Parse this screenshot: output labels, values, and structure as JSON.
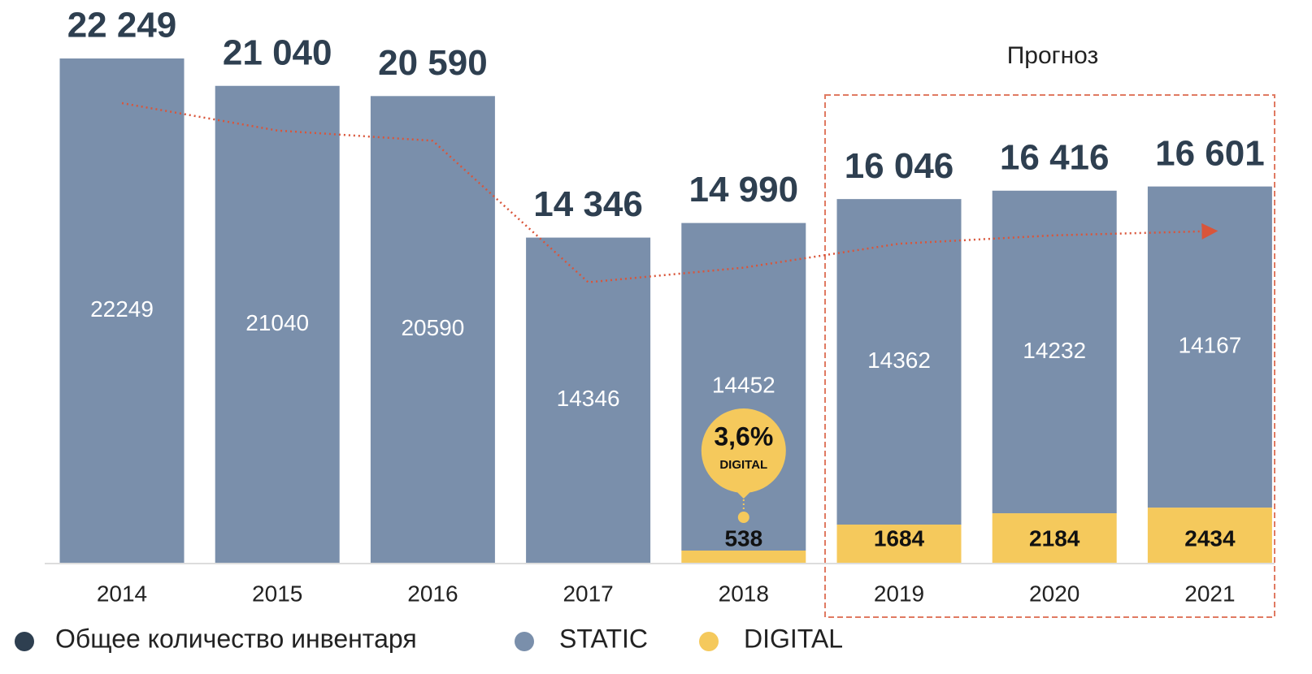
{
  "chart_data": {
    "type": "bar",
    "stacked": true,
    "categories": [
      "2014",
      "2015",
      "2016",
      "2017",
      "2018",
      "2019",
      "2020",
      "2021"
    ],
    "series": [
      {
        "name": "Общее количество инвентаря",
        "color": "#2e3f50",
        "line_color": "#d9553a",
        "values": [
          22249,
          21040,
          20590,
          14346,
          14990,
          16046,
          16416,
          16601
        ],
        "value_labels": [
          "22 249",
          "21 040",
          "20 590",
          "14 346",
          "14 990",
          "16 046",
          "16 416",
          "16 601"
        ]
      },
      {
        "name": "STATIC",
        "color": "#7a8fab",
        "values": [
          22249,
          21040,
          20590,
          14346,
          14452,
          14362,
          14232,
          14167
        ]
      },
      {
        "name": "DIGITAL",
        "color": "#f5c95c",
        "values": [
          null,
          null,
          null,
          null,
          538,
          1684,
          2184,
          2434
        ]
      }
    ],
    "annotations": {
      "forecast": "Прогноз",
      "share": "3,6%",
      "share_label": "DIGITAL"
    }
  }
}
